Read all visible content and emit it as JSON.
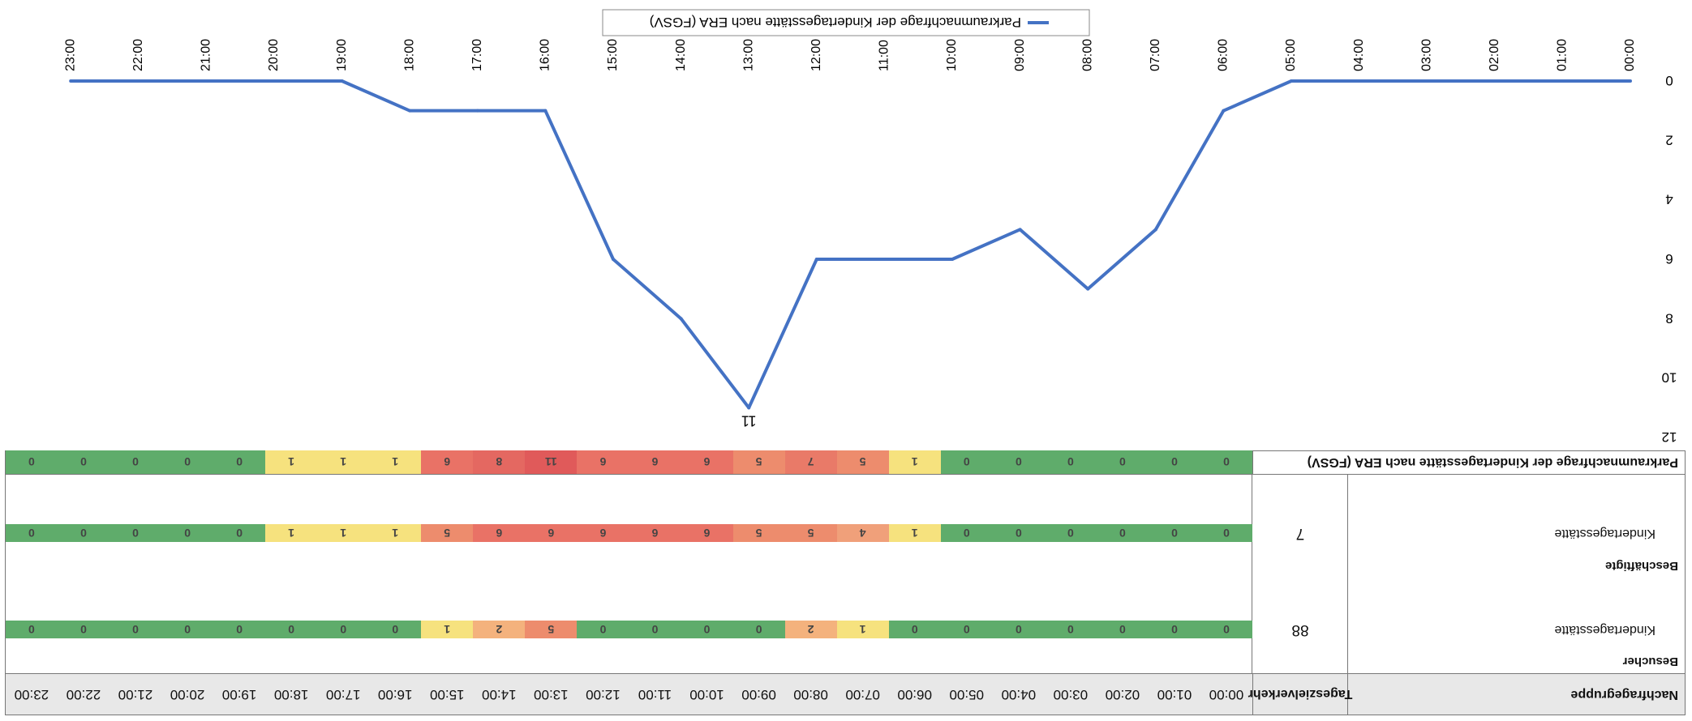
{
  "table": {
    "header": {
      "group_label": "Nachfragegruppe",
      "target_label": "Tageszielverkehr",
      "hours": [
        "00:00",
        "01:00",
        "02:00",
        "03:00",
        "04:00",
        "05:00",
        "06:00",
        "07:00",
        "08:00",
        "09:00",
        "10:00",
        "11:00",
        "12:00",
        "13:00",
        "14:00",
        "15:00",
        "16:00",
        "17:00",
        "18:00",
        "19:00",
        "20:00",
        "21:00",
        "22:00",
        "23:00"
      ]
    },
    "sections": [
      {
        "title": "Besucher",
        "rows": [
          {
            "name": "Kindertagesstätte",
            "target": "88",
            "values": [
              0,
              0,
              0,
              0,
              0,
              0,
              0,
              1,
              2,
              0,
              0,
              0,
              0,
              5,
              2,
              1,
              0,
              0,
              0,
              0,
              0,
              0,
              0,
              0
            ]
          }
        ]
      },
      {
        "title": "Beschäftigte",
        "rows": [
          {
            "name": "Kindertagesstätte",
            "target": "7",
            "values": [
              0,
              0,
              0,
              0,
              0,
              0,
              1,
              4,
              5,
              5,
              6,
              6,
              6,
              6,
              6,
              5,
              1,
              1,
              1,
              0,
              0,
              0,
              0,
              0
            ]
          }
        ]
      }
    ],
    "total": {
      "label": "Parkraumnachfrage der Kindertagesstätte nach ERA (FGSV)",
      "values": [
        0,
        0,
        0,
        0,
        0,
        0,
        1,
        5,
        7,
        5,
        6,
        6,
        6,
        11,
        8,
        6,
        1,
        1,
        1,
        0,
        0,
        0,
        0,
        0
      ]
    },
    "heat_colors": {
      "0": "#5fac6b",
      "1": "#f6e27e",
      "2": "#f4b27d",
      "4": "#f0a07a",
      "5": "#ed8c6d",
      "6": "#e97266",
      "7": "#e97a68",
      "8": "#e46861",
      "11": "#e05a5a"
    }
  },
  "chart_data": {
    "type": "line",
    "categories": [
      "00:00",
      "01:00",
      "02:00",
      "03:00",
      "04:00",
      "05:00",
      "06:00",
      "07:00",
      "08:00",
      "09:00",
      "10:00",
      "11:00",
      "12:00",
      "13:00",
      "14:00",
      "15:00",
      "16:00",
      "17:00",
      "18:00",
      "19:00",
      "20:00",
      "21:00",
      "22:00",
      "23:00"
    ],
    "series": [
      {
        "name": "Parkraumnachfrage der Kindertagesstätte nach ERA (FGSV)",
        "values": [
          0,
          0,
          0,
          0,
          0,
          0,
          1,
          5,
          7,
          5,
          6,
          6,
          6,
          11,
          8,
          6,
          1,
          1,
          1,
          0,
          0,
          0,
          0,
          0
        ]
      }
    ],
    "y_ticks": [
      "0",
      "2",
      "4",
      "6",
      "8",
      "10",
      "12"
    ],
    "ylim": [
      0,
      12
    ],
    "data_labels": [
      {
        "index": 13,
        "text": "11"
      }
    ],
    "legend_position": "bottom",
    "line_color": "#4472c4",
    "orientation": "rendered upside down (rotated 180°)"
  }
}
